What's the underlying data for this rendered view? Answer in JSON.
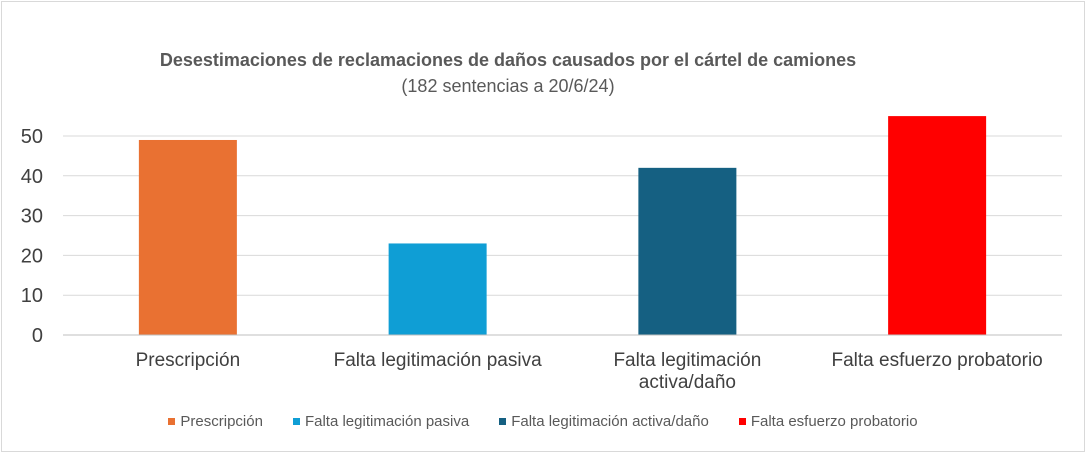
{
  "chart_data": {
    "type": "bar",
    "title": "Desestimaciones de reclamaciones de daños causados por el cártel de camiones",
    "subtitle": "(182 sentencias a 20/6/24)",
    "categories": [
      "Prescripción",
      "Falta legitimación pasiva",
      "Falta legitimación activa/daño",
      "Falta esfuerzo probatorio"
    ],
    "category_lines": [
      [
        "Prescripción"
      ],
      [
        "Falta legitimación pasiva"
      ],
      [
        "Falta legitimación",
        "activa/daño"
      ],
      [
        "Falta esfuerzo probatorio"
      ]
    ],
    "values": [
      49,
      23,
      42,
      55
    ],
    "colors": [
      "#E97132",
      "#0F9ED5",
      "#156082",
      "#FF0000"
    ],
    "yticks": [
      0,
      10,
      20,
      30,
      40,
      50
    ],
    "ylim": [
      0,
      57.5
    ],
    "grid": true,
    "legend_position": "bottom",
    "xlabel": "",
    "ylabel": ""
  }
}
